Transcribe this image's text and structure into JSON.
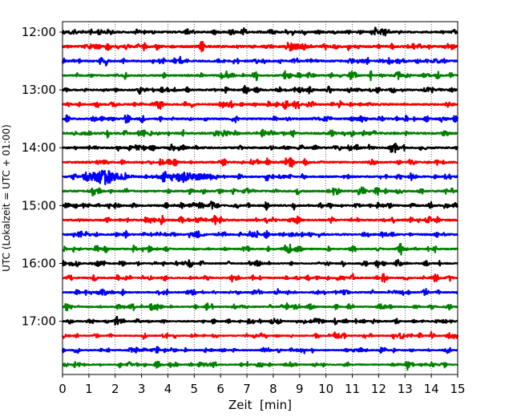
{
  "chart_data": {
    "type": "line",
    "title": "",
    "xlabel": "Zeit  [min]",
    "ylabel": "UTC (Lokalzeit = UTC + 01:00)",
    "xlim": [
      0,
      15
    ],
    "x_ticks": [
      "0",
      "1",
      "2",
      "3",
      "4",
      "5",
      "6",
      "7",
      "8",
      "9",
      "10",
      "11",
      "12",
      "13",
      "14",
      "15"
    ],
    "y_tick_labels": [
      "12:00",
      "13:00",
      "14:00",
      "15:00",
      "16:00",
      "17:00"
    ],
    "grid": "vertical dotted",
    "trace_colors": [
      "#000000",
      "#ff0000",
      "#0000ff",
      "#008000"
    ],
    "traces": [
      {
        "start": "12:00",
        "color": "#000000",
        "amplitude": 0.9
      },
      {
        "start": "12:15",
        "color": "#ff0000",
        "amplitude": 1.0
      },
      {
        "start": "12:30",
        "color": "#0000ff",
        "amplitude": 0.9
      },
      {
        "start": "12:45",
        "color": "#008000",
        "amplitude": 0.7
      },
      {
        "start": "13:00",
        "color": "#000000",
        "amplitude": 0.8
      },
      {
        "start": "13:15",
        "color": "#ff0000",
        "amplitude": 0.8
      },
      {
        "start": "13:30",
        "color": "#0000ff",
        "amplitude": 0.8
      },
      {
        "start": "13:45",
        "color": "#008000",
        "amplitude": 0.9
      },
      {
        "start": "14:00",
        "color": "#000000",
        "amplitude": 0.8
      },
      {
        "start": "14:15",
        "color": "#ff0000",
        "amplitude": 0.8
      },
      {
        "start": "14:30",
        "color": "#0000ff",
        "amplitude": 0.8,
        "events": [
          {
            "t": 1.4,
            "amp": 6.5,
            "width": 0.55
          },
          {
            "t": 4.6,
            "amp": 4.2,
            "width": 0.6
          }
        ]
      },
      {
        "start": "14:45",
        "color": "#008000",
        "amplitude": 0.8
      },
      {
        "start": "15:00",
        "color": "#000000",
        "amplitude": 0.8
      },
      {
        "start": "15:15",
        "color": "#ff0000",
        "amplitude": 0.8
      },
      {
        "start": "15:30",
        "color": "#0000ff",
        "amplitude": 0.8
      },
      {
        "start": "15:45",
        "color": "#008000",
        "amplitude": 0.6
      },
      {
        "start": "16:00",
        "color": "#000000",
        "amplitude": 0.6
      },
      {
        "start": "16:15",
        "color": "#ff0000",
        "amplitude": 0.6
      },
      {
        "start": "16:30",
        "color": "#0000ff",
        "amplitude": 0.6
      },
      {
        "start": "16:45",
        "color": "#008000",
        "amplitude": 0.6
      },
      {
        "start": "17:00",
        "color": "#000000",
        "amplitude": 0.6
      },
      {
        "start": "17:15",
        "color": "#ff0000",
        "amplitude": 0.5
      },
      {
        "start": "17:30",
        "color": "#0000ff",
        "amplitude": 0.5
      },
      {
        "start": "17:45",
        "color": "#008000",
        "amplitude": 0.5
      }
    ]
  }
}
